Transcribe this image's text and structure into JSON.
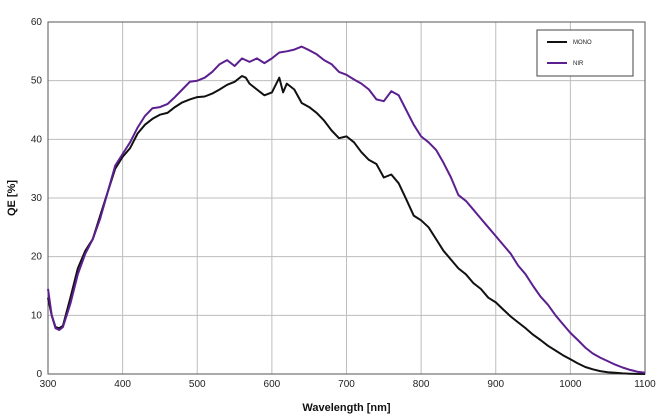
{
  "chart_data": {
    "type": "line",
    "title": "",
    "xlabel": "Wavelength [nm]",
    "ylabel": "QE [%]",
    "xlim": [
      300,
      1100
    ],
    "ylim": [
      0,
      60
    ],
    "x_ticks": [
      "300",
      "400",
      "500",
      "600",
      "700",
      "800",
      "900",
      "1000",
      "1100"
    ],
    "y_ticks": [
      "0",
      "10",
      "20",
      "30",
      "40",
      "50",
      "60"
    ],
    "grid": true,
    "legend_position": "top-right",
    "series": [
      {
        "name": "MONO",
        "color": "#111111",
        "x": [
          300,
          305,
          310,
          315,
          320,
          330,
          340,
          350,
          360,
          370,
          380,
          390,
          400,
          410,
          420,
          430,
          440,
          450,
          460,
          470,
          480,
          490,
          500,
          510,
          520,
          530,
          540,
          550,
          560,
          565,
          570,
          580,
          590,
          600,
          610,
          615,
          620,
          630,
          640,
          650,
          660,
          670,
          680,
          690,
          700,
          710,
          720,
          730,
          740,
          750,
          760,
          770,
          780,
          790,
          800,
          810,
          820,
          830,
          840,
          850,
          860,
          870,
          880,
          890,
          900,
          910,
          920,
          930,
          940,
          950,
          960,
          970,
          980,
          990,
          1000,
          1010,
          1020,
          1030,
          1040,
          1050,
          1060,
          1070,
          1080,
          1090,
          1100
        ],
        "y": [
          13,
          10,
          8,
          7.8,
          8.2,
          13,
          18,
          21,
          23,
          27,
          31,
          35,
          37,
          38.5,
          41,
          42.5,
          43.5,
          44.2,
          44.5,
          45.5,
          46.3,
          46.8,
          47.2,
          47.3,
          47.8,
          48.5,
          49.3,
          49.8,
          50.8,
          50.5,
          49.5,
          48.5,
          47.5,
          48,
          50.5,
          48,
          49.5,
          48.5,
          46.2,
          45.5,
          44.5,
          43.2,
          41.5,
          40.2,
          40.5,
          39.5,
          37.8,
          36.5,
          35.8,
          33.5,
          34,
          32.5,
          29.8,
          27,
          26.2,
          25,
          23,
          21,
          19.5,
          18,
          17,
          15.5,
          14.5,
          13,
          12.2,
          11,
          9.8,
          8.8,
          7.8,
          6.7,
          5.8,
          4.8,
          4,
          3.2,
          2.5,
          1.8,
          1.2,
          0.8,
          0.5,
          0.3,
          0.2,
          0.1,
          0.05,
          0.02,
          0
        ]
      },
      {
        "name": "NIR",
        "color": "#5b1f8f",
        "x": [
          300,
          305,
          310,
          315,
          320,
          330,
          340,
          350,
          360,
          370,
          380,
          390,
          400,
          410,
          420,
          430,
          440,
          450,
          460,
          470,
          480,
          490,
          500,
          510,
          520,
          530,
          540,
          550,
          560,
          570,
          580,
          590,
          600,
          610,
          620,
          630,
          640,
          650,
          660,
          670,
          680,
          690,
          700,
          710,
          720,
          730,
          740,
          750,
          760,
          770,
          780,
          790,
          800,
          810,
          820,
          830,
          840,
          850,
          860,
          870,
          880,
          890,
          900,
          910,
          920,
          930,
          940,
          950,
          960,
          970,
          980,
          990,
          1000,
          1010,
          1020,
          1030,
          1040,
          1050,
          1060,
          1070,
          1080,
          1090,
          1100
        ],
        "y": [
          14.5,
          10,
          7.8,
          7.5,
          8,
          12,
          17,
          20.5,
          23,
          26.5,
          31,
          35.5,
          37.5,
          39.5,
          42,
          44,
          45.3,
          45.5,
          46,
          47.2,
          48.5,
          49.8,
          50,
          50.5,
          51.5,
          52.8,
          53.5,
          52.5,
          53.8,
          53.2,
          53.8,
          53,
          53.8,
          54.8,
          55,
          55.3,
          55.8,
          55.2,
          54.5,
          53.5,
          52.8,
          51.5,
          51,
          50.2,
          49.5,
          48.5,
          46.8,
          46.5,
          48.2,
          47.5,
          45,
          42.5,
          40.5,
          39.5,
          38.2,
          36,
          33.5,
          30.5,
          29.5,
          28,
          26.5,
          25,
          23.5,
          22,
          20.5,
          18.5,
          17,
          15,
          13.2,
          11.8,
          10,
          8.5,
          7,
          5.8,
          4.5,
          3.5,
          2.8,
          2.2,
          1.6,
          1.1,
          0.7,
          0.4,
          0.2
        ]
      }
    ]
  }
}
